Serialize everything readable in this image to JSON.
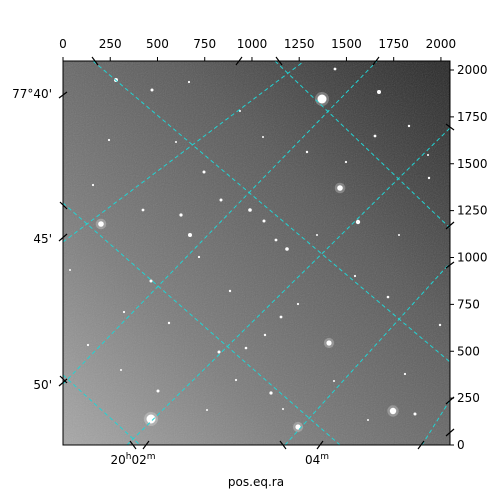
{
  "axis_title_bottom": "pos.eq.ra",
  "top_ticks": {
    "values": [
      0,
      250,
      500,
      750,
      1000,
      1250,
      1500,
      1750,
      2000
    ],
    "labels": [
      "0",
      "250",
      "500",
      "750",
      "1000",
      "1250",
      "1500",
      "1750",
      "2000"
    ]
  },
  "right_ticks": {
    "values": [
      0,
      250,
      500,
      750,
      1000,
      1250,
      1500,
      1750,
      2000
    ],
    "labels": [
      "0",
      "250",
      "500",
      "750",
      "1000",
      "1250",
      "1500",
      "1750",
      "2000"
    ]
  },
  "pixel_range": [
    0,
    2048
  ],
  "left_labels": [
    "77°40'",
    "45'",
    "50'"
  ],
  "bottom_labels": [
    "20h02m",
    "04m"
  ],
  "colors": {
    "grid": "#22d3d3",
    "sky_dark": "#2f2f2f",
    "sky_light": "#a9a9a9"
  }
}
